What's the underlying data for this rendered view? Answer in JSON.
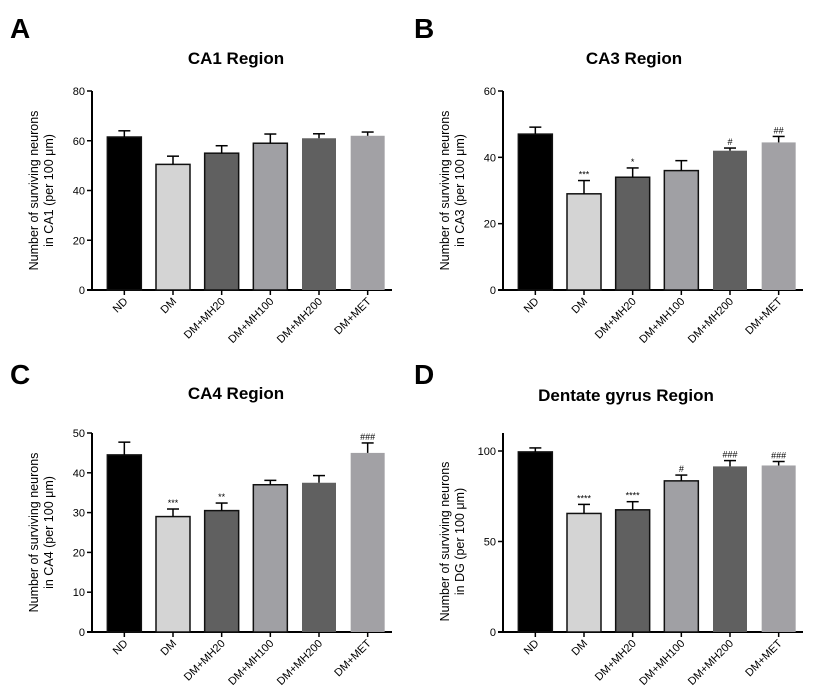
{
  "figure": {
    "categories": [
      "ND",
      "DM",
      "DM+MH20",
      "DM+MH100",
      "DM+MH200",
      "DM+MET"
    ],
    "bar_colors": [
      "#000000",
      "#d4d4d4",
      "#606060",
      "#a0a0a4",
      "#606060",
      "#a2a1a5"
    ]
  },
  "chart_data": [
    {
      "panel": "A",
      "type": "bar",
      "title": "CA1 Region",
      "xlabel": "",
      "ylabel": [
        "Number of surviving neurons",
        "in CA1 (per 100 μm)"
      ],
      "categories": [
        "ND",
        "DM",
        "DM+MH20",
        "DM+MH100",
        "DM+MH200",
        "DM+MET"
      ],
      "values": [
        61.5,
        50.5,
        55,
        59,
        61,
        62
      ],
      "errors": [
        2.5,
        3.3,
        3,
        3.7,
        1.8,
        1.5
      ],
      "annotations": [
        "",
        "",
        "",
        "",
        "",
        ""
      ],
      "ylim": [
        0,
        80
      ],
      "yticks": [
        0,
        20,
        40,
        60,
        80
      ],
      "grid": false
    },
    {
      "panel": "B",
      "type": "bar",
      "title": "CA3 Region",
      "xlabel": "",
      "ylabel": [
        "Number of surviving neurons",
        "in CA3 (per 100 μm)"
      ],
      "categories": [
        "ND",
        "DM",
        "DM+MH20",
        "DM+MH100",
        "DM+MH200",
        "DM+MET"
      ],
      "values": [
        47,
        29,
        34,
        36,
        42,
        44.5
      ],
      "errors": [
        2.1,
        4,
        2.8,
        3,
        0.8,
        1.8
      ],
      "annotations": [
        "",
        "***",
        "*",
        "",
        "#",
        "##"
      ],
      "ylim": [
        0,
        60
      ],
      "yticks": [
        0,
        20,
        40,
        60
      ],
      "grid": false
    },
    {
      "panel": "C",
      "type": "bar",
      "title": "CA4 Region",
      "xlabel": "",
      "ylabel": [
        "Number of surviving neurons",
        "in CA4 (per 100 μm)"
      ],
      "categories": [
        "ND",
        "DM",
        "DM+MH20",
        "DM+MH100",
        "DM+MH200",
        "DM+MET"
      ],
      "values": [
        44.5,
        29,
        30.5,
        37,
        37.5,
        45
      ],
      "errors": [
        3.2,
        1.9,
        1.9,
        1.1,
        1.8,
        2.5
      ],
      "annotations": [
        "",
        "***",
        "**",
        "",
        "",
        "###"
      ],
      "ylim": [
        0,
        50
      ],
      "yticks": [
        0,
        10,
        20,
        30,
        40,
        50
      ],
      "grid": false
    },
    {
      "panel": "D",
      "type": "bar",
      "title": "Dentate gyrus Region",
      "xlabel": "",
      "ylabel": [
        "Number of surviving neurons",
        "in DG (per 100 μm)"
      ],
      "categories": [
        "ND",
        "DM",
        "DM+MH20",
        "DM+MH100",
        "DM+MH200",
        "DM+MET"
      ],
      "values": [
        99.5,
        65.5,
        67.5,
        83.5,
        91.5,
        92
      ],
      "errors": [
        2.2,
        5,
        4.5,
        3.2,
        3.2,
        2.2
      ],
      "annotations": [
        "",
        "****",
        "****",
        "#",
        "###",
        "###"
      ],
      "ylim": [
        0,
        110
      ],
      "yticks": [
        0,
        50,
        100
      ],
      "grid": false
    }
  ]
}
